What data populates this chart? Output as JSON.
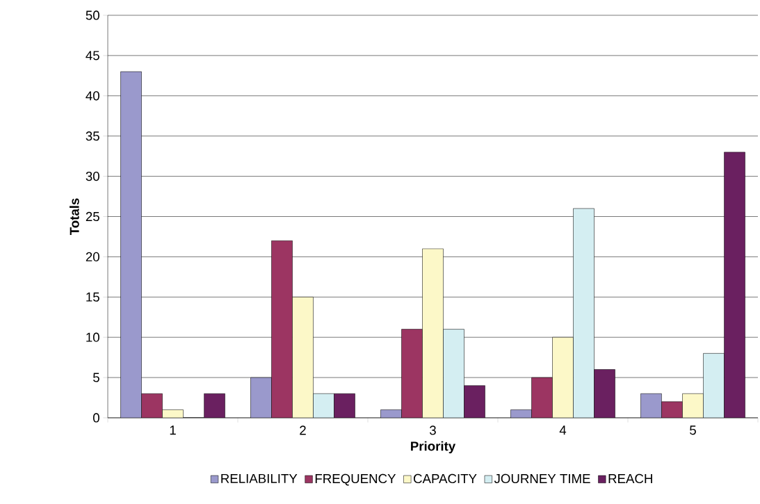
{
  "chart_data": {
    "type": "bar",
    "xlabel": "Priority",
    "ylabel": "Totals",
    "categories": [
      "1",
      "2",
      "3",
      "4",
      "5"
    ],
    "series": [
      {
        "name": "RELIABILITY",
        "color": "#9a99cc",
        "values": [
          43,
          5,
          1,
          1,
          3
        ]
      },
      {
        "name": "FREQUENCY",
        "color": "#9c3562",
        "values": [
          3,
          22,
          11,
          5,
          2
        ]
      },
      {
        "name": "CAPACITY",
        "color": "#fcf8c8",
        "values": [
          1,
          15,
          21,
          10,
          3
        ]
      },
      {
        "name": "JOURNEY TIME",
        "color": "#d4eef2",
        "values": [
          0,
          3,
          11,
          26,
          8
        ]
      },
      {
        "name": "REACH",
        "color": "#6a2060",
        "values": [
          3,
          3,
          4,
          6,
          33
        ]
      }
    ],
    "ylim": [
      0,
      50
    ],
    "yticks": [
      0,
      5,
      10,
      15,
      20,
      25,
      30,
      35,
      40,
      45,
      50
    ],
    "grid": "y",
    "legend": "bottom"
  }
}
